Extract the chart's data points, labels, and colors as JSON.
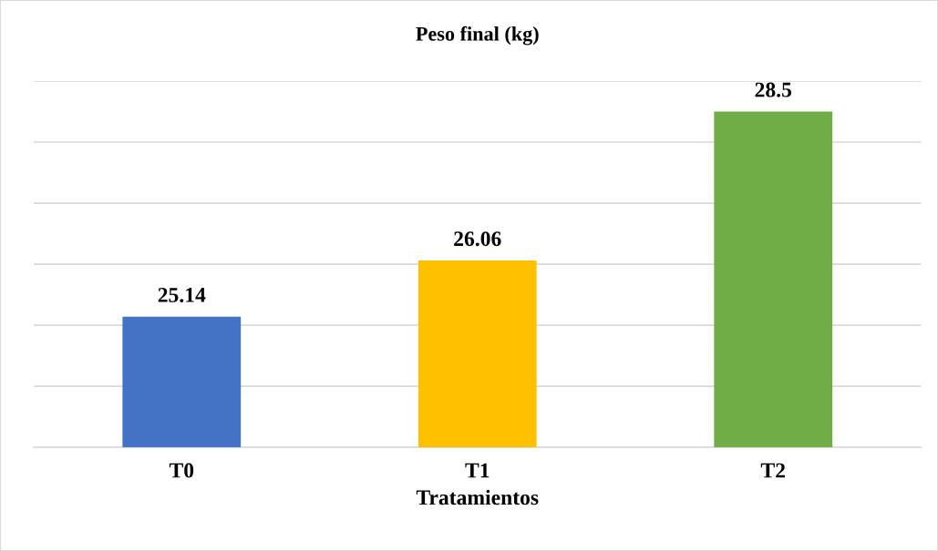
{
  "chart_data": {
    "type": "bar",
    "title": "Peso final (kg)",
    "xlabel": "Tratamientos",
    "categories": [
      "T0",
      "T1",
      "T2"
    ],
    "values": [
      25.14,
      26.06,
      28.5
    ],
    "colors": [
      "#4472c4",
      "#ffc000",
      "#70ad47"
    ],
    "ylim": [
      23,
      29
    ],
    "yticks": [
      {
        "value": 23,
        "label": null
      },
      {
        "value": 24,
        "label": null
      },
      {
        "value": 25,
        "label": null
      },
      {
        "value": 26,
        "label": null
      },
      {
        "value": 27,
        "label": null
      },
      {
        "value": 28,
        "label": null
      },
      {
        "value": 29,
        "label": null
      }
    ],
    "tick_labels": "x",
    "grid": "y",
    "data_labels": true
  }
}
